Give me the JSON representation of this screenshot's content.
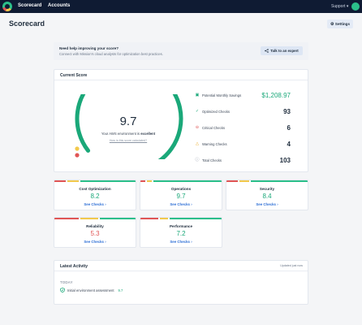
{
  "nav": {
    "items": [
      "Scorecard",
      "Accounts"
    ],
    "support": "Support ▾",
    "avatar_initial": "S"
  },
  "page": {
    "title": "Scorecard",
    "settings_label": "Settings"
  },
  "help": {
    "title": "Need help improving your score?",
    "subtitle": "Connect with Mission's cloud analysts for optimization best practices.",
    "button_label": "Talk to an expert"
  },
  "score": {
    "header": "Current Score",
    "value": "9.7",
    "gauge_fraction": 0.97,
    "description_prefix": "Your AWS environment is ",
    "description_status": "excellent",
    "link": "How is this score calculated?"
  },
  "metrics": [
    {
      "label": "Potential Monthly Savings",
      "value": "$1,208.97",
      "icon": "savings-icon",
      "color": "#1aa879"
    },
    {
      "label": "Optimized Checks",
      "value": "93",
      "icon": "check-circle-icon",
      "color": "#1aa879"
    },
    {
      "label": "Critical Checks",
      "value": "6",
      "icon": "critical-icon",
      "color": "#e05555"
    },
    {
      "label": "Warning Checks",
      "value": "4",
      "icon": "warning-icon",
      "color": "#e8a317"
    },
    {
      "label": "Total Checks",
      "value": "103",
      "icon": "info-icon",
      "color": "#8a94a3"
    }
  ],
  "categories": [
    {
      "name": "Cost Optimization",
      "score": "8.2",
      "link": "See Checks ›",
      "score_color": "#1aa879",
      "bar": [
        "#e05555",
        "#f2c94c",
        "#2bbf8a"
      ]
    },
    {
      "name": "Operations",
      "score": "9.7",
      "link": "See Checks ›",
      "score_color": "#1aa879",
      "bar": [
        "#e05555",
        "#f2c94c",
        "#2bbf8a"
      ]
    },
    {
      "name": "Security",
      "score": "8.4",
      "link": "See Checks ›",
      "score_color": "#1aa879",
      "bar": [
        "#e05555",
        "#f2c94c",
        "#2bbf8a"
      ]
    },
    {
      "name": "Reliability",
      "score": "5.3",
      "link": "See Checks ›",
      "score_color": "#e05555",
      "bar": [
        "#e05555",
        "#f2c94c",
        "#2bbf8a"
      ]
    },
    {
      "name": "Performance",
      "score": "7.2",
      "link": "See Checks ›",
      "score_color": "#1aa879",
      "bar": [
        "#e05555",
        "#f2c94c",
        "#2bbf8a"
      ]
    }
  ],
  "activity": {
    "header": "Latest Activity",
    "updated": "Updated just now",
    "group": "TODAY",
    "items": [
      {
        "label": "Initial environment assessment",
        "score": "9.7"
      }
    ]
  },
  "colors": {
    "accent": "#1aa879",
    "critical": "#e05555",
    "warning": "#f2c94c",
    "link": "#2c6ed5",
    "nav_bg": "#0f1b33"
  }
}
